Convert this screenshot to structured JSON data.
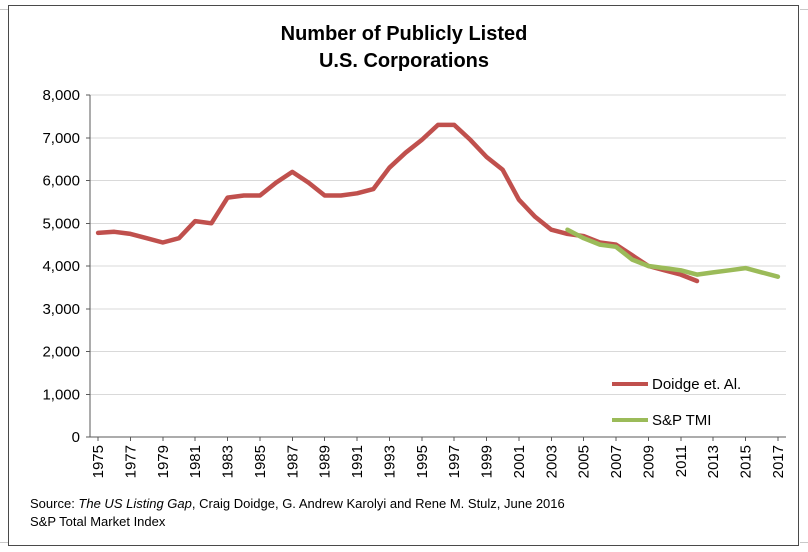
{
  "chart_data": {
    "type": "line",
    "title_line1": "Number of Publicly Listed",
    "title_line2": "U.S. Corporations",
    "x_range": [
      1975,
      2017
    ],
    "x_ticks": [
      1975,
      1977,
      1979,
      1981,
      1983,
      1985,
      1987,
      1989,
      1991,
      1993,
      1995,
      1997,
      1999,
      2001,
      2003,
      2005,
      2007,
      2009,
      2011,
      2013,
      2015,
      2017
    ],
    "ylim": [
      0,
      8000
    ],
    "y_tick_interval": 1000,
    "grid": true,
    "legend_position": "inside-bottom-right",
    "series": [
      {
        "name": "Doidge et. Al.",
        "color": "#C0504D",
        "x": [
          1975,
          1976,
          1977,
          1978,
          1979,
          1980,
          1981,
          1982,
          1983,
          1984,
          1985,
          1986,
          1987,
          1988,
          1989,
          1990,
          1991,
          1992,
          1993,
          1994,
          1995,
          1996,
          1997,
          1998,
          1999,
          2000,
          2001,
          2002,
          2003,
          2004,
          2005,
          2006,
          2007,
          2008,
          2009,
          2010,
          2011,
          2012
        ],
        "values": [
          4775,
          4800,
          4750,
          4650,
          4550,
          4650,
          5050,
          5000,
          5600,
          5650,
          5650,
          5950,
          6200,
          5950,
          5650,
          5650,
          5700,
          5800,
          6300,
          6650,
          6950,
          7300,
          7300,
          6950,
          6550,
          6250,
          5550,
          5150,
          4850,
          4750,
          4700,
          4550,
          4500,
          4250,
          4000,
          3900,
          3800,
          3650
        ]
      },
      {
        "name": "S&P TMI",
        "color": "#9BBB59",
        "x": [
          2004,
          2005,
          2006,
          2007,
          2008,
          2009,
          2010,
          2011,
          2012,
          2013,
          2014,
          2015,
          2016,
          2017
        ],
        "values": [
          4850,
          4650,
          4500,
          4450,
          4150,
          4000,
          3950,
          3900,
          3800,
          3850,
          3900,
          3950,
          3850,
          3750
        ]
      }
    ]
  },
  "source": {
    "prefix": "Source: ",
    "italic": "The US Listing Gap",
    "rest": ", Craig Doidge, G. Andrew Karolyi and Rene M. Stulz, June 2016",
    "line2": "S&P Total Market Index"
  }
}
